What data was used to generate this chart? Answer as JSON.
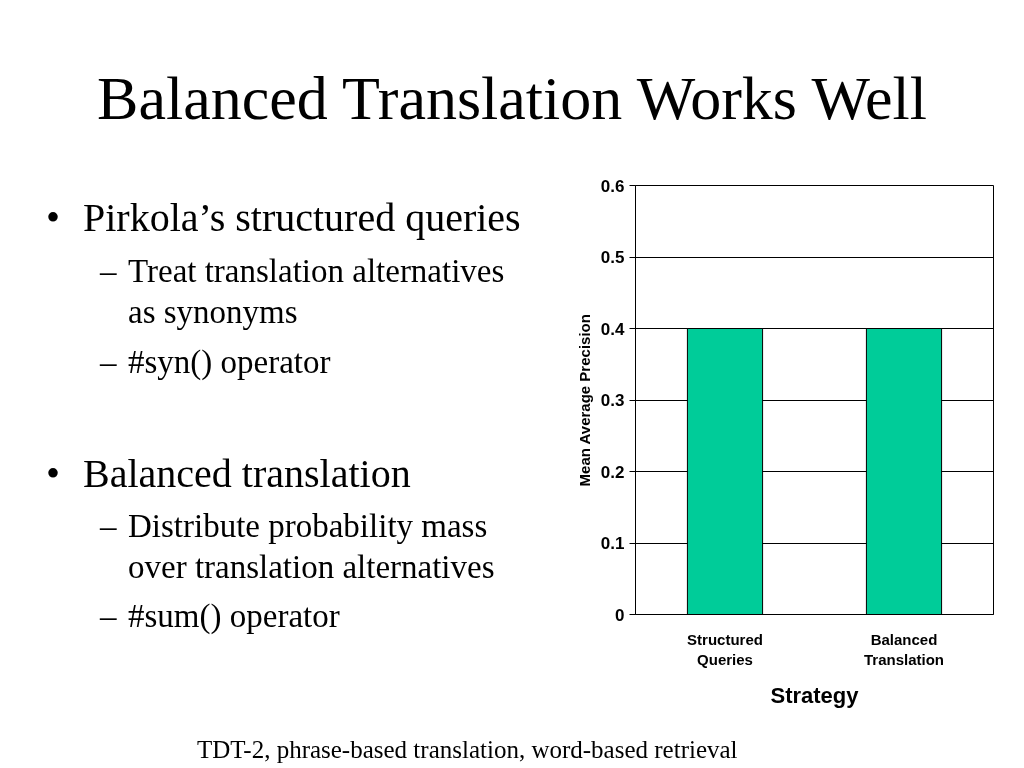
{
  "chart_data": {
    "type": "bar",
    "title": "Balanced Translation Works Well",
    "categories": [
      "Structured Queries",
      "Balanced Translation"
    ],
    "values": [
      0.4,
      0.4
    ],
    "color": "#00cc99",
    "xlabel": "Strategy",
    "ylabel": "Mean Average Precision",
    "ylim": [
      0,
      0.6
    ],
    "yticks": [
      0,
      0.1,
      0.2,
      0.3,
      0.4,
      0.5,
      0.6
    ],
    "grid": "y",
    "annotations": [
      "• Pirkola’s structured queries",
      "– Treat translation alternatives as synonyms",
      "– #syn() operator",
      "• Balanced translation",
      "– Distribute probability mass over translation alternatives",
      "– #sum() operator",
      "TDT-2, phrase-based translation, word-based retrieval"
    ]
  }
}
